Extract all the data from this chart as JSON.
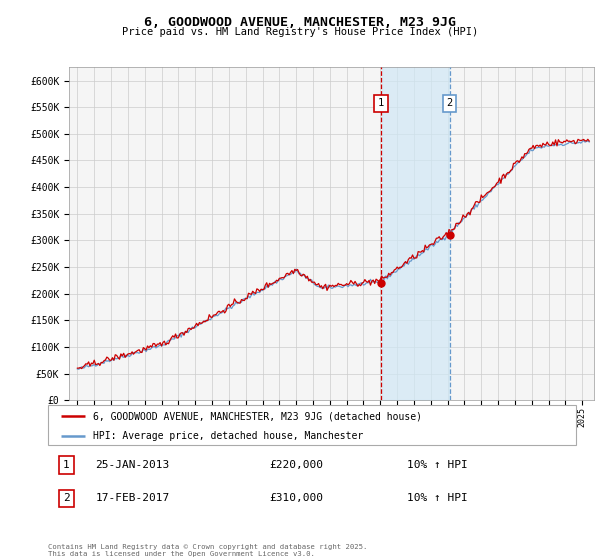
{
  "title": "6, GOODWOOD AVENUE, MANCHESTER, M23 9JG",
  "subtitle": "Price paid vs. HM Land Registry's House Price Index (HPI)",
  "legend_label_1": "6, GOODWOOD AVENUE, MANCHESTER, M23 9JG (detached house)",
  "legend_label_2": "HPI: Average price, detached house, Manchester",
  "marker1_date": "25-JAN-2013",
  "marker1_price": "£220,000",
  "marker1_hpi": "10% ↑ HPI",
  "marker2_date": "17-FEB-2017",
  "marker2_price": "£310,000",
  "marker2_hpi": "10% ↑ HPI",
  "footer": "Contains HM Land Registry data © Crown copyright and database right 2025.\nThis data is licensed under the Open Government Licence v3.0.",
  "property_color": "#cc0000",
  "hpi_color": "#6699cc",
  "shade_color": "#d0e8f5",
  "grid_color": "#cccccc",
  "yticks": [
    0,
    50000,
    100000,
    150000,
    200000,
    250000,
    300000,
    350000,
    400000,
    450000,
    500000,
    550000,
    600000
  ],
  "sale1_t": 2013.04,
  "sale1_price": 220000,
  "sale2_t": 2017.12,
  "sale2_price": 310000
}
